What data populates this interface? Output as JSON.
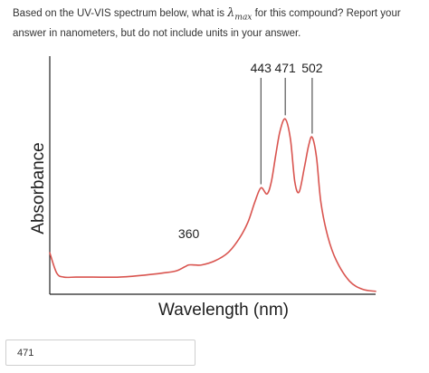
{
  "question": {
    "before": "Based on the UV-VIS spectrum below, what is",
    "lambda_symbol": "λ",
    "lambda_sub": "max",
    "after": "for this compound?  Report your answer in nanometers, but do not include units in your answer."
  },
  "answer": {
    "value": "471"
  },
  "colors": {
    "curve": "#d9544f",
    "axis": "#222222",
    "pointer": "#333333"
  },
  "chart_data": {
    "type": "line",
    "title": "",
    "xlabel": "Wavelength (nm)",
    "ylabel": "Absorbance",
    "axis_ticks": false,
    "grid": false,
    "legend": "none",
    "annotations": [
      {
        "label": "360",
        "x": 360
      },
      {
        "label": "443",
        "x": 443
      },
      {
        "label": "471",
        "x": 471
      },
      {
        "label": "502",
        "x": 502
      }
    ],
    "series": [
      {
        "x": [
          200,
          208,
          216,
          230,
          250,
          280,
          310,
          330,
          345,
          355,
          360,
          367,
          375,
          390,
          405,
          418,
          428,
          436,
          443,
          450,
          455,
          460,
          465,
          471,
          477,
          482,
          487,
          493,
          498,
          502,
          507,
          512,
          520,
          530,
          545,
          560,
          575
        ],
        "y": [
          0.2,
          0.1,
          0.08,
          0.08,
          0.08,
          0.08,
          0.09,
          0.1,
          0.11,
          0.13,
          0.14,
          0.14,
          0.14,
          0.16,
          0.2,
          0.27,
          0.35,
          0.45,
          0.52,
          0.49,
          0.55,
          0.68,
          0.8,
          0.86,
          0.76,
          0.55,
          0.5,
          0.62,
          0.73,
          0.77,
          0.67,
          0.45,
          0.28,
          0.16,
          0.06,
          0.02,
          0.01
        ]
      }
    ]
  }
}
